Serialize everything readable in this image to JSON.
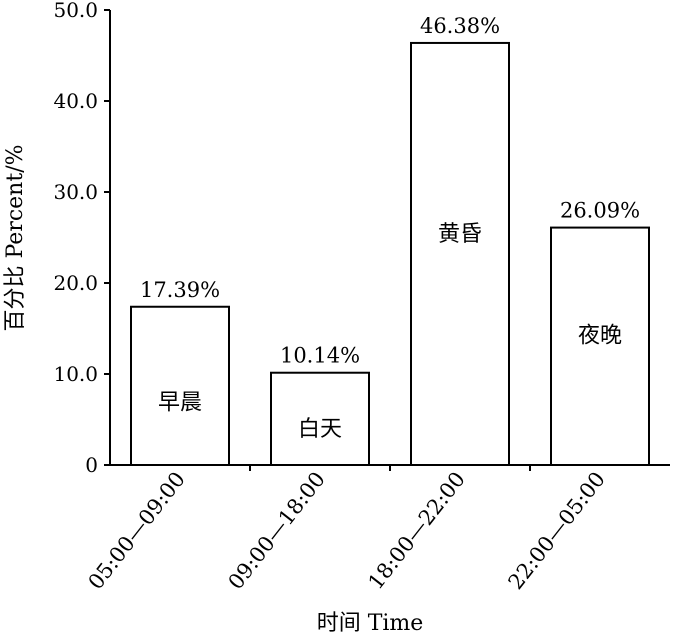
{
  "chart_data": {
    "type": "bar",
    "categories": [
      "05:00—09:00",
      "09:00—18:00",
      "18:00—22:00",
      "22:00—05:00"
    ],
    "values": [
      17.39,
      10.14,
      46.38,
      26.09
    ],
    "value_labels": [
      "17.39%",
      "10.14%",
      "46.38%",
      "26.09%"
    ],
    "bar_inner_labels": [
      "早晨",
      "白天",
      "黄昏",
      "夜晚"
    ],
    "y_ticks": [
      "0",
      "10.0",
      "20.0",
      "30.0",
      "40.0",
      "50.0"
    ],
    "ylim": [
      0,
      50
    ],
    "xlabel": "时间 Time",
    "ylabel": "百分比 Percent/%",
    "grid": false,
    "bar_fill": "#ffffff",
    "bar_stroke": "#000000"
  }
}
